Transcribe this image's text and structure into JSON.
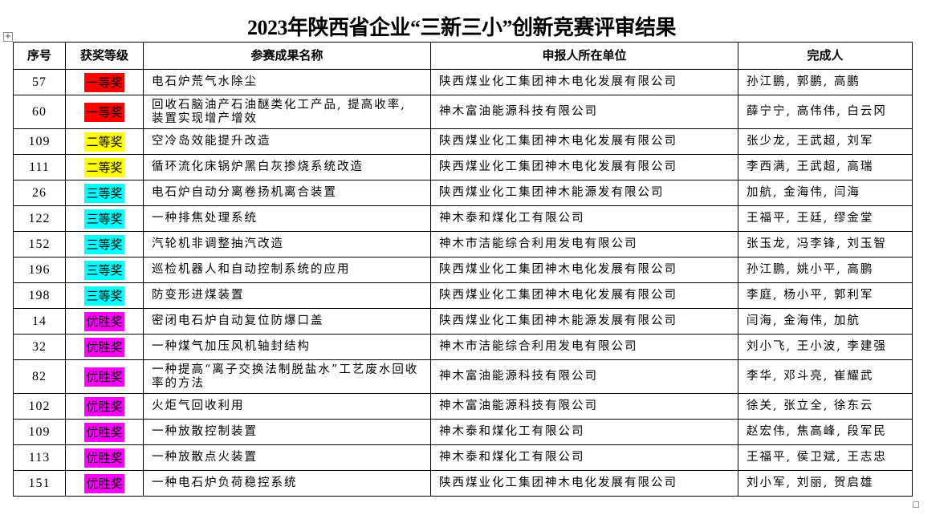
{
  "title": "2023年陕西省企业“三新三小”创新竞赛评审结果",
  "level_colors": {
    "一等奖": "#ff0000",
    "二等奖": "#ffff00",
    "三等奖": "#00ffff",
    "优胜奖": "#ff00ff"
  },
  "headers": [
    "序号",
    "获奖等级",
    "参赛成果名称",
    "申报人所在单位",
    "完成人"
  ],
  "rows": [
    {
      "no": "57",
      "level": "一等奖",
      "name": "电石炉荒气水除尘",
      "unit": "陕西煤业化工集团神木电化发展有限公司",
      "people": "孙江鹏, 郭鹏, 高鹏"
    },
    {
      "no": "60",
      "level": "一等奖",
      "name": "回收石脑油产石油醚类化工产品, 提高收率, 装置实现增产增效",
      "unit": "神木富油能源科技有限公司",
      "people": "薛宁宁, 高伟伟, 白云冈"
    },
    {
      "no": "109",
      "level": "二等奖",
      "name": "空冷岛效能提升改造",
      "unit": "陕西煤业化工集团神木电化发展有限公司",
      "people": "张少龙, 王武超, 刘军"
    },
    {
      "no": "111",
      "level": "二等奖",
      "name": "循环流化床锅炉黑白灰掺烧系统改造",
      "unit": "陕西煤业化工集团神木电化发展有限公司",
      "people": "李西满, 王武超, 高瑞"
    },
    {
      "no": "26",
      "level": "三等奖",
      "name": "电石炉自动分离卷扬机离合装置",
      "unit": "陕西煤业化工集团神木能源发有限公司",
      "people": "加航, 金海伟, 闫海"
    },
    {
      "no": "122",
      "level": "三等奖",
      "name": "一种排焦处理系统",
      "unit": "神木泰和煤化工有限公司",
      "people": "王福平, 王廷, 缪金堂"
    },
    {
      "no": "152",
      "level": "三等奖",
      "name": "汽轮机非调整抽汽改造",
      "unit": "神木市洁能综合利用发电有限公司",
      "people": "张玉龙, 冯李锋, 刘玉智"
    },
    {
      "no": "196",
      "level": "三等奖",
      "name": "巡检机器人和自动控制系统的应用",
      "unit": "陕西煤业化工集团神木电化发展有限公司",
      "people": "孙江鹏, 姚小平, 高鹏"
    },
    {
      "no": "198",
      "level": "三等奖",
      "name": "防变形进煤装置",
      "unit": "陕西煤业化工集团神木电化发展有限公司",
      "people": "李庭, 杨小平, 郭利军"
    },
    {
      "no": "14",
      "level": "优胜奖",
      "name": "密闭电石炉自动复位防爆口盖",
      "unit": "陕西煤业化工集团神木能源发展有限公司",
      "people": "闫海, 金海伟, 加航"
    },
    {
      "no": "32",
      "level": "优胜奖",
      "name": "一种煤气加压风机轴封结构",
      "unit": "神木市洁能综合利用发电有限公司",
      "people": "刘小飞, 王小波, 李建强"
    },
    {
      "no": "82",
      "level": "优胜奖",
      "name": "一种提高“离子交换法制脱盐水”工艺废水回收率的方法",
      "unit": "神木富油能源科技有限公司",
      "people": "李华, 邓斗亮, 崔耀武"
    },
    {
      "no": "102",
      "level": "优胜奖",
      "name": "火炬气回收利用",
      "unit": "神木富油能源科技有限公司",
      "people": "徐关, 张立全, 徐东云"
    },
    {
      "no": "109",
      "level": "优胜奖",
      "name": "一种放散控制装置",
      "unit": "神木泰和煤化工有限公司",
      "people": "赵宏伟, 焦高峰, 段军民"
    },
    {
      "no": "113",
      "level": "优胜奖",
      "name": "一种放散点火装置",
      "unit": "神木泰和煤化工有限公司",
      "people": "王福平, 侯卫斌, 王志忠"
    },
    {
      "no": "151",
      "level": "优胜奖",
      "name": "一种电石炉负荷稳控系统",
      "unit": "陕西煤业化工集团神木电化发展有限公司",
      "people": "刘小军, 刘丽, 贺启雄"
    }
  ]
}
